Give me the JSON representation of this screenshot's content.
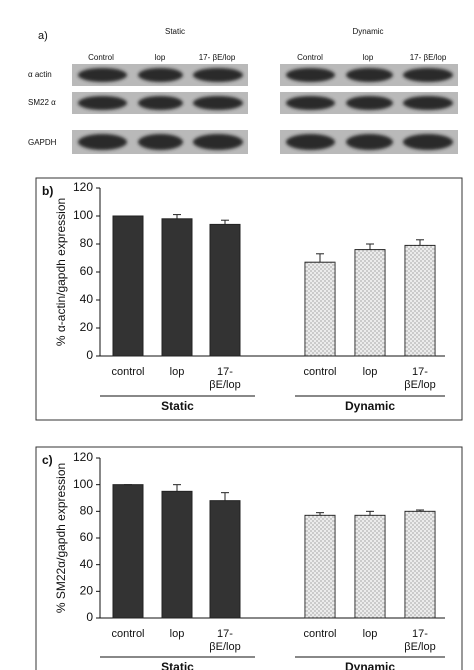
{
  "blot": {
    "panel_label": "a)",
    "groups": [
      "Static",
      "Dynamic"
    ],
    "lanes": [
      "Control",
      "lop",
      "17- βE/lop",
      "Control",
      "lop",
      "17- βE/lop"
    ],
    "rows": [
      "α actin",
      "SM22 α",
      "GAPDH"
    ]
  },
  "chart_data": [
    {
      "type": "bar",
      "panel_label": "b)",
      "y_label": "% α-actin/gapdh expression",
      "categories": [
        "control",
        "lop",
        "17-\nβE/lop"
      ],
      "series": [
        {
          "name": "Static",
          "color": "#333333",
          "values": [
            100,
            98,
            94
          ],
          "errors": [
            0,
            3,
            3
          ]
        },
        {
          "name": "Dynamic",
          "color": "#ececec",
          "pattern": "dotted",
          "values": [
            67,
            76,
            79
          ],
          "errors": [
            6,
            4,
            4
          ]
        }
      ],
      "ylim": [
        0,
        120
      ],
      "yticks": [
        0,
        20,
        40,
        60,
        80,
        100,
        120
      ]
    },
    {
      "type": "bar",
      "panel_label": "c)",
      "y_label": "% SM22α/gapdh expression",
      "categories": [
        "control",
        "lop",
        "17-\nβE/lop"
      ],
      "series": [
        {
          "name": "Static",
          "color": "#333333",
          "values": [
            100,
            95,
            88
          ],
          "errors": [
            0,
            5,
            6
          ]
        },
        {
          "name": "Dynamic",
          "color": "#ececec",
          "pattern": "dotted",
          "values": [
            77,
            77,
            80
          ],
          "errors": [
            2,
            3,
            1
          ]
        }
      ],
      "ylim": [
        0,
        120
      ],
      "yticks": [
        0,
        20,
        40,
        60,
        80,
        100,
        120
      ]
    }
  ]
}
